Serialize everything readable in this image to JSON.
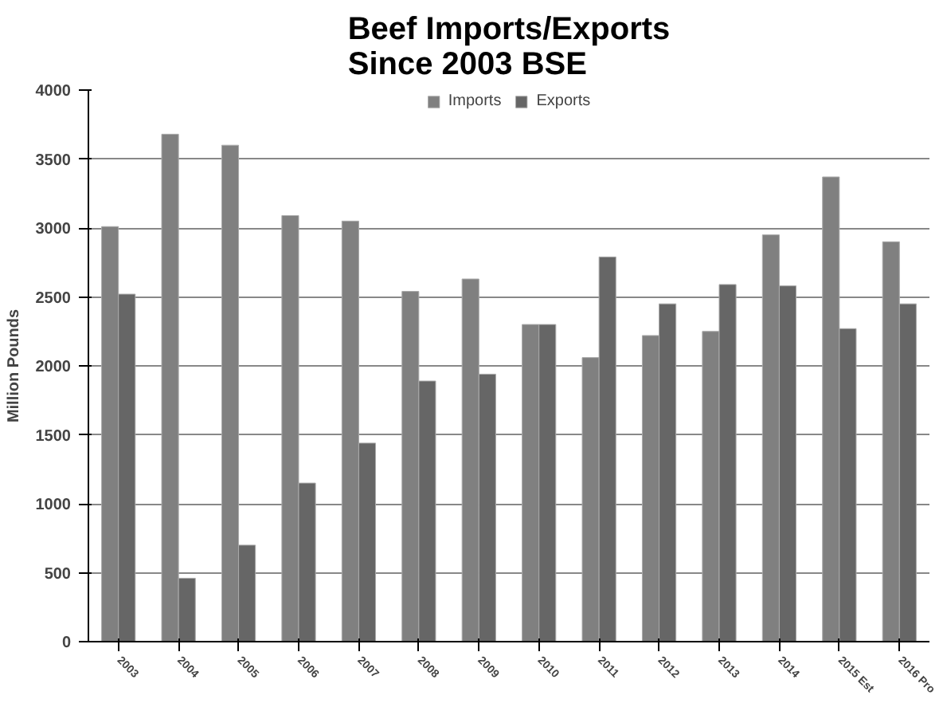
{
  "chart_data": {
    "type": "bar",
    "title": "Beef Imports/Exports\nSince 2003 BSE",
    "ylabel": "Million Pounds",
    "categories": [
      "2003",
      "2004",
      "2005",
      "2006",
      "2007",
      "2008",
      "2009",
      "2010",
      "2011",
      "2012",
      "2013",
      "2014",
      "2015 Est",
      "2016 Pro"
    ],
    "series": [
      {
        "name": "Imports",
        "color": "#808080",
        "values": [
          3010,
          3680,
          3600,
          3090,
          3050,
          2540,
          2630,
          2300,
          2060,
          2220,
          2250,
          2950,
          3370,
          2900
        ]
      },
      {
        "name": "Exports",
        "color": "#666666",
        "values": [
          2520,
          460,
          700,
          1150,
          1440,
          1890,
          1940,
          2300,
          2790,
          2450,
          2590,
          2580,
          2270,
          2450
        ]
      }
    ],
    "ylim": [
      0,
      4000
    ],
    "yticks": [
      0,
      500,
      1000,
      1500,
      2000,
      2500,
      3000,
      3500,
      4000
    ],
    "grid": "y",
    "legend": "top"
  }
}
